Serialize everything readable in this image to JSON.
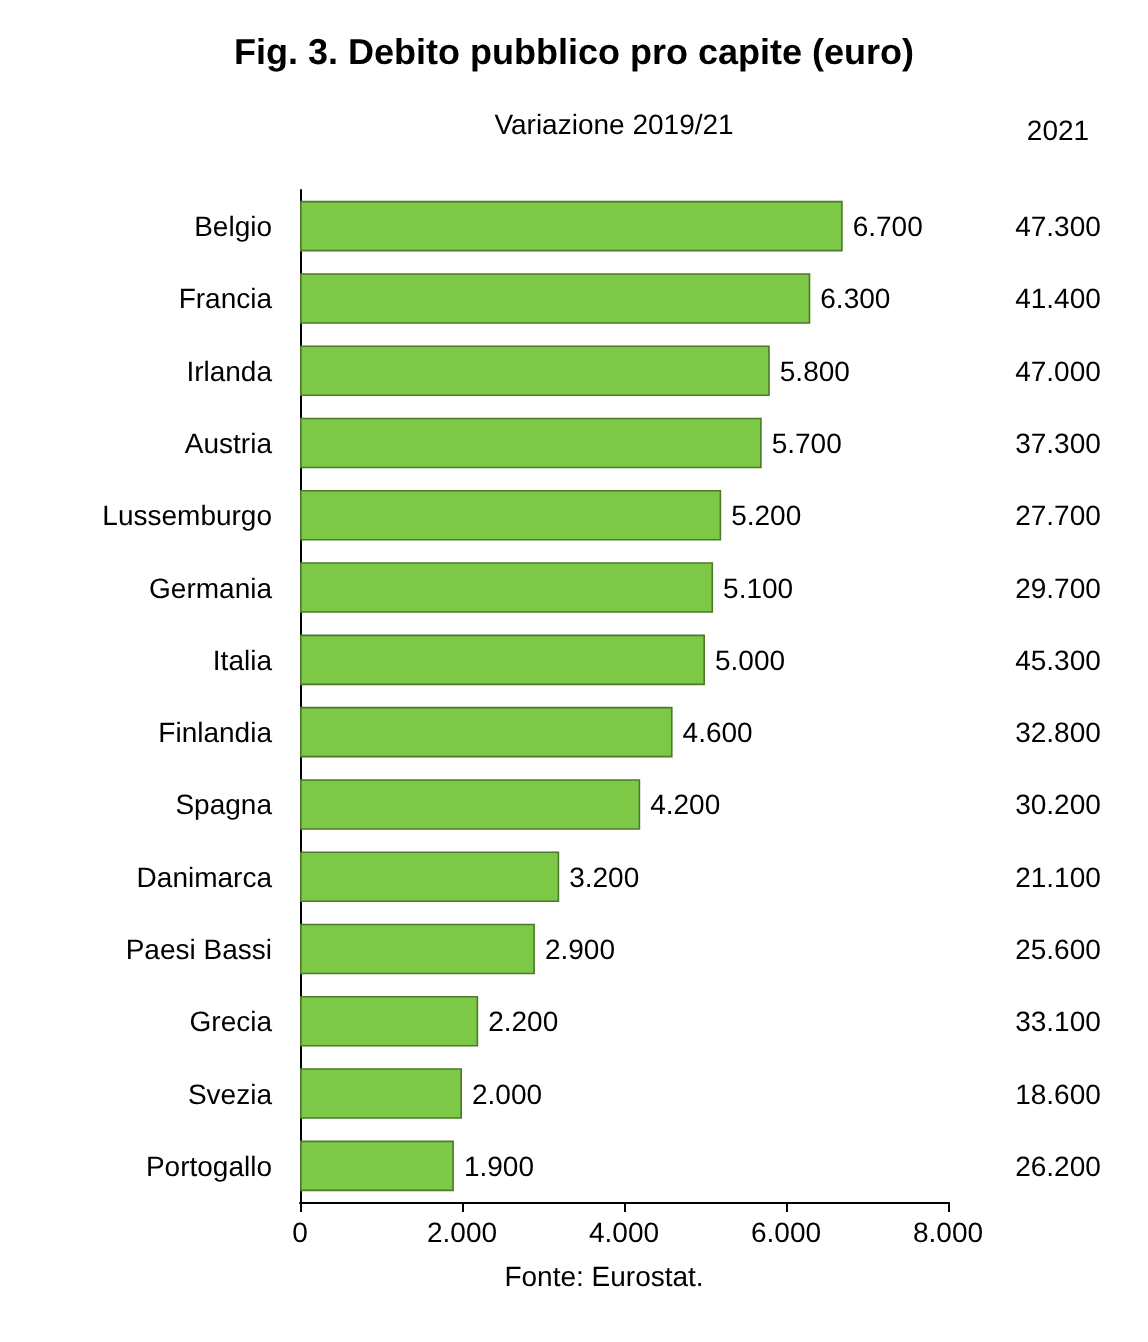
{
  "chart_data": {
    "type": "bar",
    "orientation": "horizontal",
    "title": "Fig. 3. Debito pubblico pro capite (euro)",
    "subtitle": "Variazione 2019/21",
    "categories": [
      "Belgio",
      "Francia",
      "Irlanda",
      "Austria",
      "Lussemburgo",
      "Germania",
      "Italia",
      "Finlandia",
      "Spagna",
      "Danimarca",
      "Paesi Bassi",
      "Grecia",
      "Svezia",
      "Portogallo"
    ],
    "values": [
      6700,
      6300,
      5800,
      5700,
      5200,
      5100,
      5000,
      4600,
      4200,
      3200,
      2900,
      2200,
      2000,
      1900
    ],
    "value_labels": [
      "6.700",
      "6.300",
      "5.800",
      "5.700",
      "5.200",
      "5.100",
      "5.000",
      "4.600",
      "4.200",
      "3.200",
      "2.900",
      "2.200",
      "2.000",
      "1.900"
    ],
    "color": "#7dc846",
    "xlim": [
      0,
      8000
    ],
    "xticks": [
      0,
      {
        "value": 2000,
        "label": "2.000"
      },
      {
        "value": 4000,
        "label": "4.000"
      },
      {
        "value": 6000,
        "label": "6.000"
      },
      {
        "value": 8000,
        "label": "8.000"
      }
    ],
    "grid": false,
    "annotations": [
      "2021",
      "47.300",
      "41.400",
      "47.000",
      "37.300",
      "27.700",
      "29.700",
      "45.300",
      "32.800",
      "30.200",
      "21.100",
      "25.600",
      "33.100",
      "18.600",
      "26.200",
      "Fonte: Eurostat."
    ]
  }
}
